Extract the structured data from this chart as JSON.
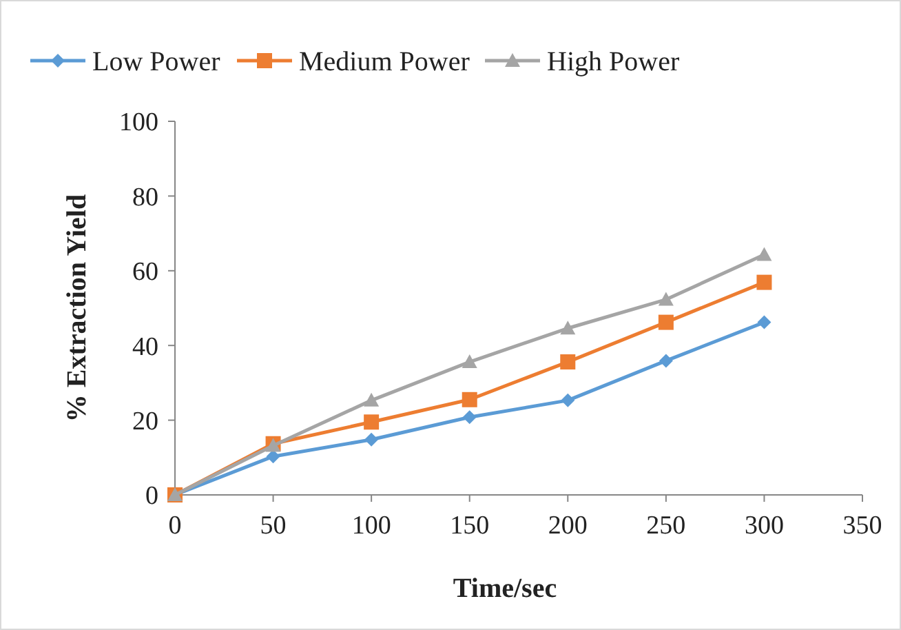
{
  "chart_data": {
    "type": "line",
    "xlabel": "Time/sec",
    "ylabel": "% Extraction Yield",
    "x": [
      0,
      50,
      100,
      150,
      200,
      250,
      300
    ],
    "series": [
      {
        "name": "Low Power",
        "color": "#5b9bd5",
        "marker": "diamond",
        "values": [
          0,
          10.3,
          14.8,
          20.8,
          25.3,
          35.9,
          46.2
        ]
      },
      {
        "name": "Medium Power",
        "color": "#ed7d31",
        "marker": "square",
        "values": [
          0,
          13.7,
          19.5,
          25.5,
          35.6,
          46.2,
          56.9
        ]
      },
      {
        "name": "High Power",
        "color": "#a5a5a5",
        "marker": "triangle",
        "values": [
          0,
          13.2,
          25.3,
          35.6,
          44.6,
          52.3,
          64.3
        ]
      }
    ],
    "xlim": [
      0,
      350
    ],
    "xticks": [
      0,
      50,
      100,
      150,
      200,
      250,
      300,
      350
    ],
    "ylim": [
      0,
      100
    ],
    "yticks": [
      0,
      20,
      40,
      60,
      80,
      100
    ],
    "legend": "top",
    "grid": false,
    "line_style": "solid"
  }
}
